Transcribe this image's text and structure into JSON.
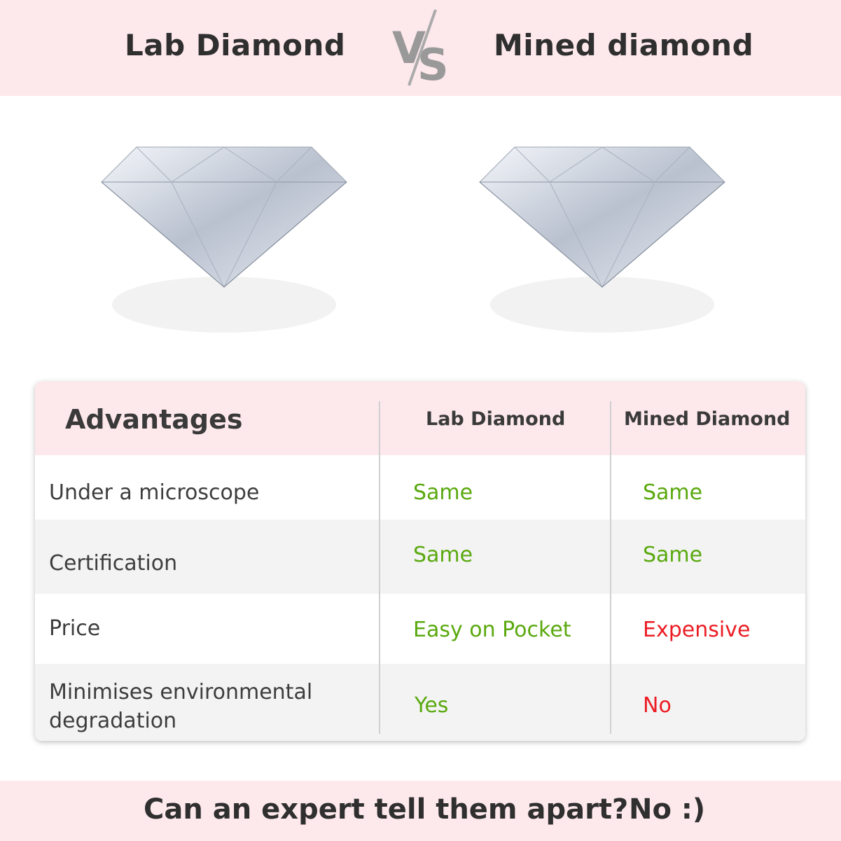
{
  "header": {
    "left_title": "Lab Diamond",
    "vs": "VS",
    "right_title": "Mined diamond"
  },
  "table": {
    "headers": [
      "Advantages",
      "Lab Diamond",
      "Mined Diamond"
    ],
    "rows": [
      {
        "label": "Under a microscope",
        "lab": "Same",
        "mined": "Same"
      },
      {
        "label": "Certification",
        "lab": "Same",
        "mined": "Same"
      },
      {
        "label": "Price",
        "lab": "Easy on Pocket",
        "mined": "Expensive"
      },
      {
        "label": "Minimises environmental degradation",
        "lab": "Yes",
        "mined": "No"
      }
    ]
  },
  "footer": {
    "question": "Can an expert tell them apart?",
    "answer": "No :)"
  },
  "colors": {
    "pink": "#fde8ec",
    "positive": "#5aa90f",
    "negative": "#ec1c24",
    "row_alt": "#f3f3f3"
  }
}
